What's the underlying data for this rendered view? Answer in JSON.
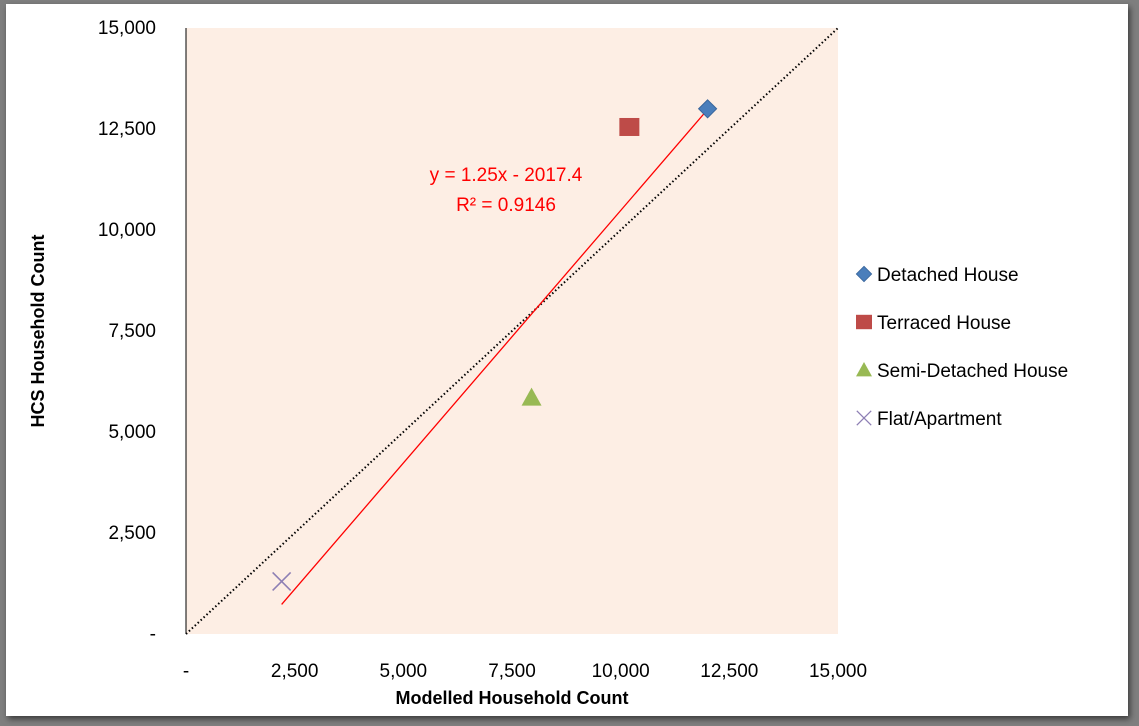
{
  "chart_data": {
    "type": "scatter",
    "xlabel": "Modelled Household Count",
    "ylabel": "HCS Household Count",
    "xlim": [
      0,
      15000
    ],
    "ylim": [
      0,
      15000
    ],
    "x_tick_labels": [
      "-",
      "2,500",
      "5,000",
      "7,500",
      "10,000",
      "12,500",
      "15,000"
    ],
    "y_tick_labels": [
      "-",
      "2,500",
      "5,000",
      "7,500",
      "10,000",
      "12,500",
      "15,000"
    ],
    "grid": false,
    "legend_position": "right",
    "plot_background": "#fdeee4",
    "series": [
      {
        "name": "Detached House",
        "marker": "diamond",
        "color": "#4a7ebb",
        "x": 12000,
        "y": 13000
      },
      {
        "name": "Terraced House",
        "marker": "square",
        "color": "#be4b48",
        "x": 10200,
        "y": 12550
      },
      {
        "name": "Semi-Detached House",
        "marker": "triangle",
        "color": "#98b954",
        "x": 7950,
        "y": 5850
      },
      {
        "name": "Flat/Apartment",
        "marker": "x",
        "color": "#8d7fb4",
        "x": 2200,
        "y": 1300
      }
    ],
    "trendline": {
      "slope": 1.25,
      "intercept": -2017.4,
      "x_range": [
        2200,
        12000
      ],
      "color": "#ff0000",
      "equation_label": "y = 1.25x - 2017.4",
      "r2_label": "R² = 0.9146"
    },
    "reference_line": {
      "style": "dotted",
      "color": "#000000",
      "from": [
        0,
        0
      ],
      "to": [
        15000,
        15000
      ]
    }
  }
}
